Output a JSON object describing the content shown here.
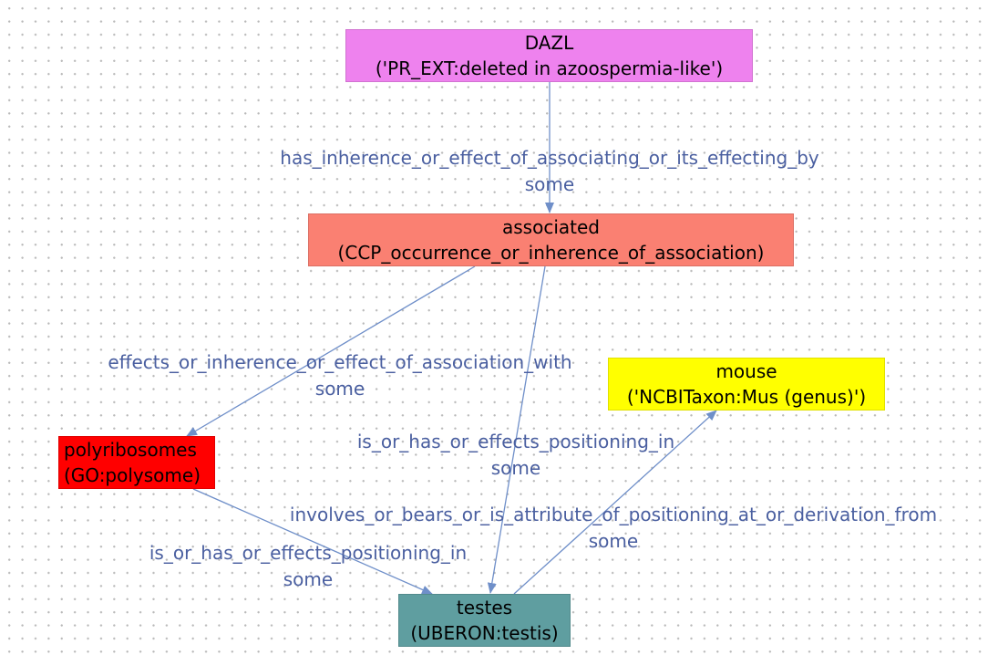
{
  "colors": {
    "edge": "#6f8fc9",
    "edge_label": "#4a5fa0",
    "node_dazl": "#ee82ee",
    "node_associated": "#fa8072",
    "node_mouse": "#ffff00",
    "node_polyribosomes": "#ff0000",
    "node_testes": "#5f9ea0"
  },
  "nodes": {
    "dazl": {
      "name": "DAZL",
      "id": "('PR_EXT:deleted in azoospermia-like')"
    },
    "associated": {
      "name": "associated",
      "id": "(CCP_occurrence_or_inherence_of_association)"
    },
    "mouse": {
      "name": "mouse",
      "id": "('NCBITaxon:Mus (genus)')"
    },
    "polyribosomes": {
      "name": "polyribosomes",
      "id": "(GO:polysome)"
    },
    "testes": {
      "name": "testes",
      "id": "(UBERON:testis)"
    }
  },
  "edges": {
    "dazl_to_associated": {
      "relation": "has_inherence_or_effect_of_associating_or_its_effecting_by",
      "quantifier": "some"
    },
    "associated_to_polyribosomes": {
      "relation": "effects_or_inherence_or_effect_of_association_with",
      "quantifier": "some"
    },
    "associated_to_testes": {
      "relation": "is_or_has_or_effects_positioning_in",
      "quantifier": "some"
    },
    "testes_to_mouse": {
      "relation": "involves_or_bears_or_is_attribute_of_positioning_at_or_derivation_from",
      "quantifier": "some"
    },
    "polyribosomes_to_testes": {
      "relation": "is_or_has_or_effects_positioning_in",
      "quantifier": "some"
    }
  }
}
